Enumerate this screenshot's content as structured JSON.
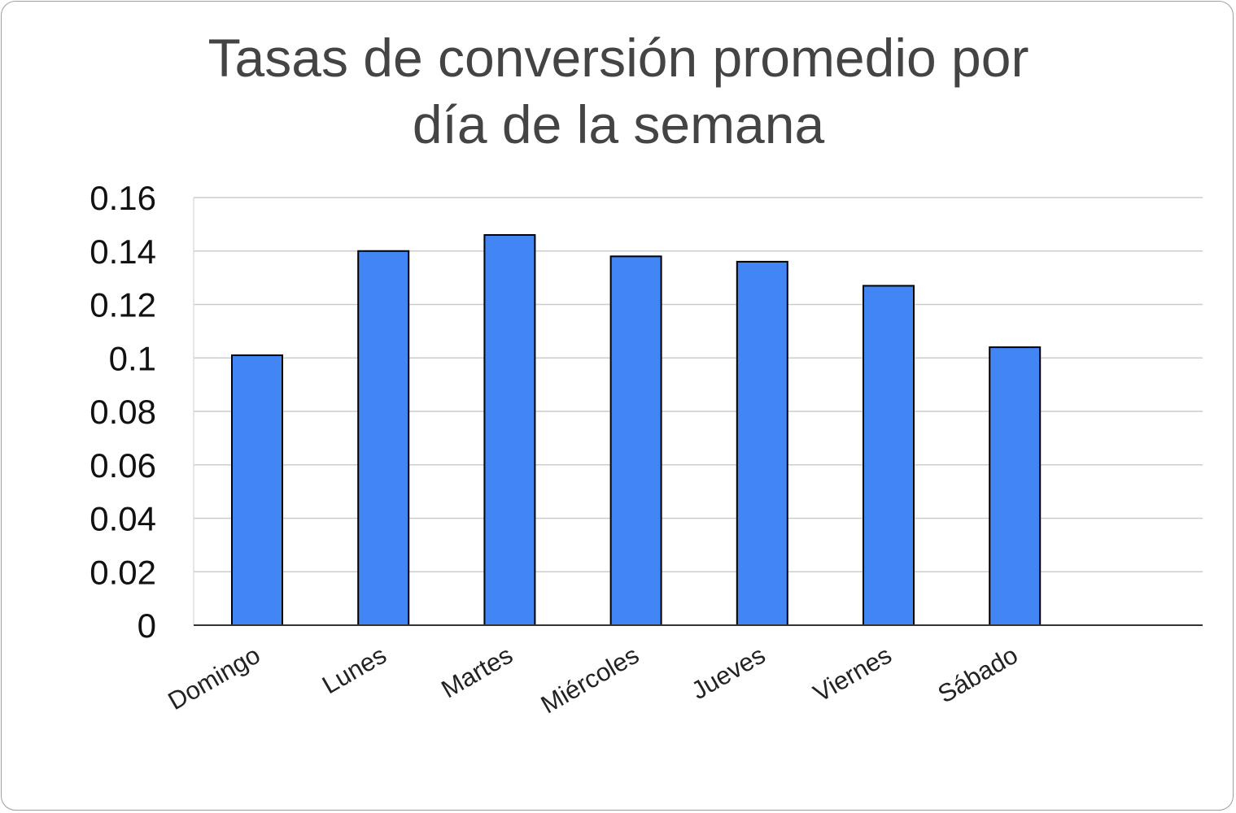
{
  "chart_data": {
    "type": "bar",
    "title_lines": [
      "Tasas de conversión promedio por",
      "día de la semana"
    ],
    "xlabel": "",
    "ylabel": "",
    "categories": [
      "Domingo",
      "Lunes",
      "Martes",
      "Miércoles",
      "Jueves",
      "Viernes",
      "Sábado"
    ],
    "values": [
      0.101,
      0.14,
      0.146,
      0.138,
      0.136,
      0.127,
      0.104
    ],
    "ylim": [
      0,
      0.16
    ],
    "yticks": [
      "0",
      "0.02",
      "0.04",
      "0.06",
      "0.08",
      "0.1",
      "0.12",
      "0.14",
      "0.16"
    ],
    "grid": true,
    "legend": "none",
    "colors": {
      "bar": "#4285f4",
      "bar_stroke": "#000000",
      "grid": "#cccccc",
      "axis": "#333333"
    }
  }
}
